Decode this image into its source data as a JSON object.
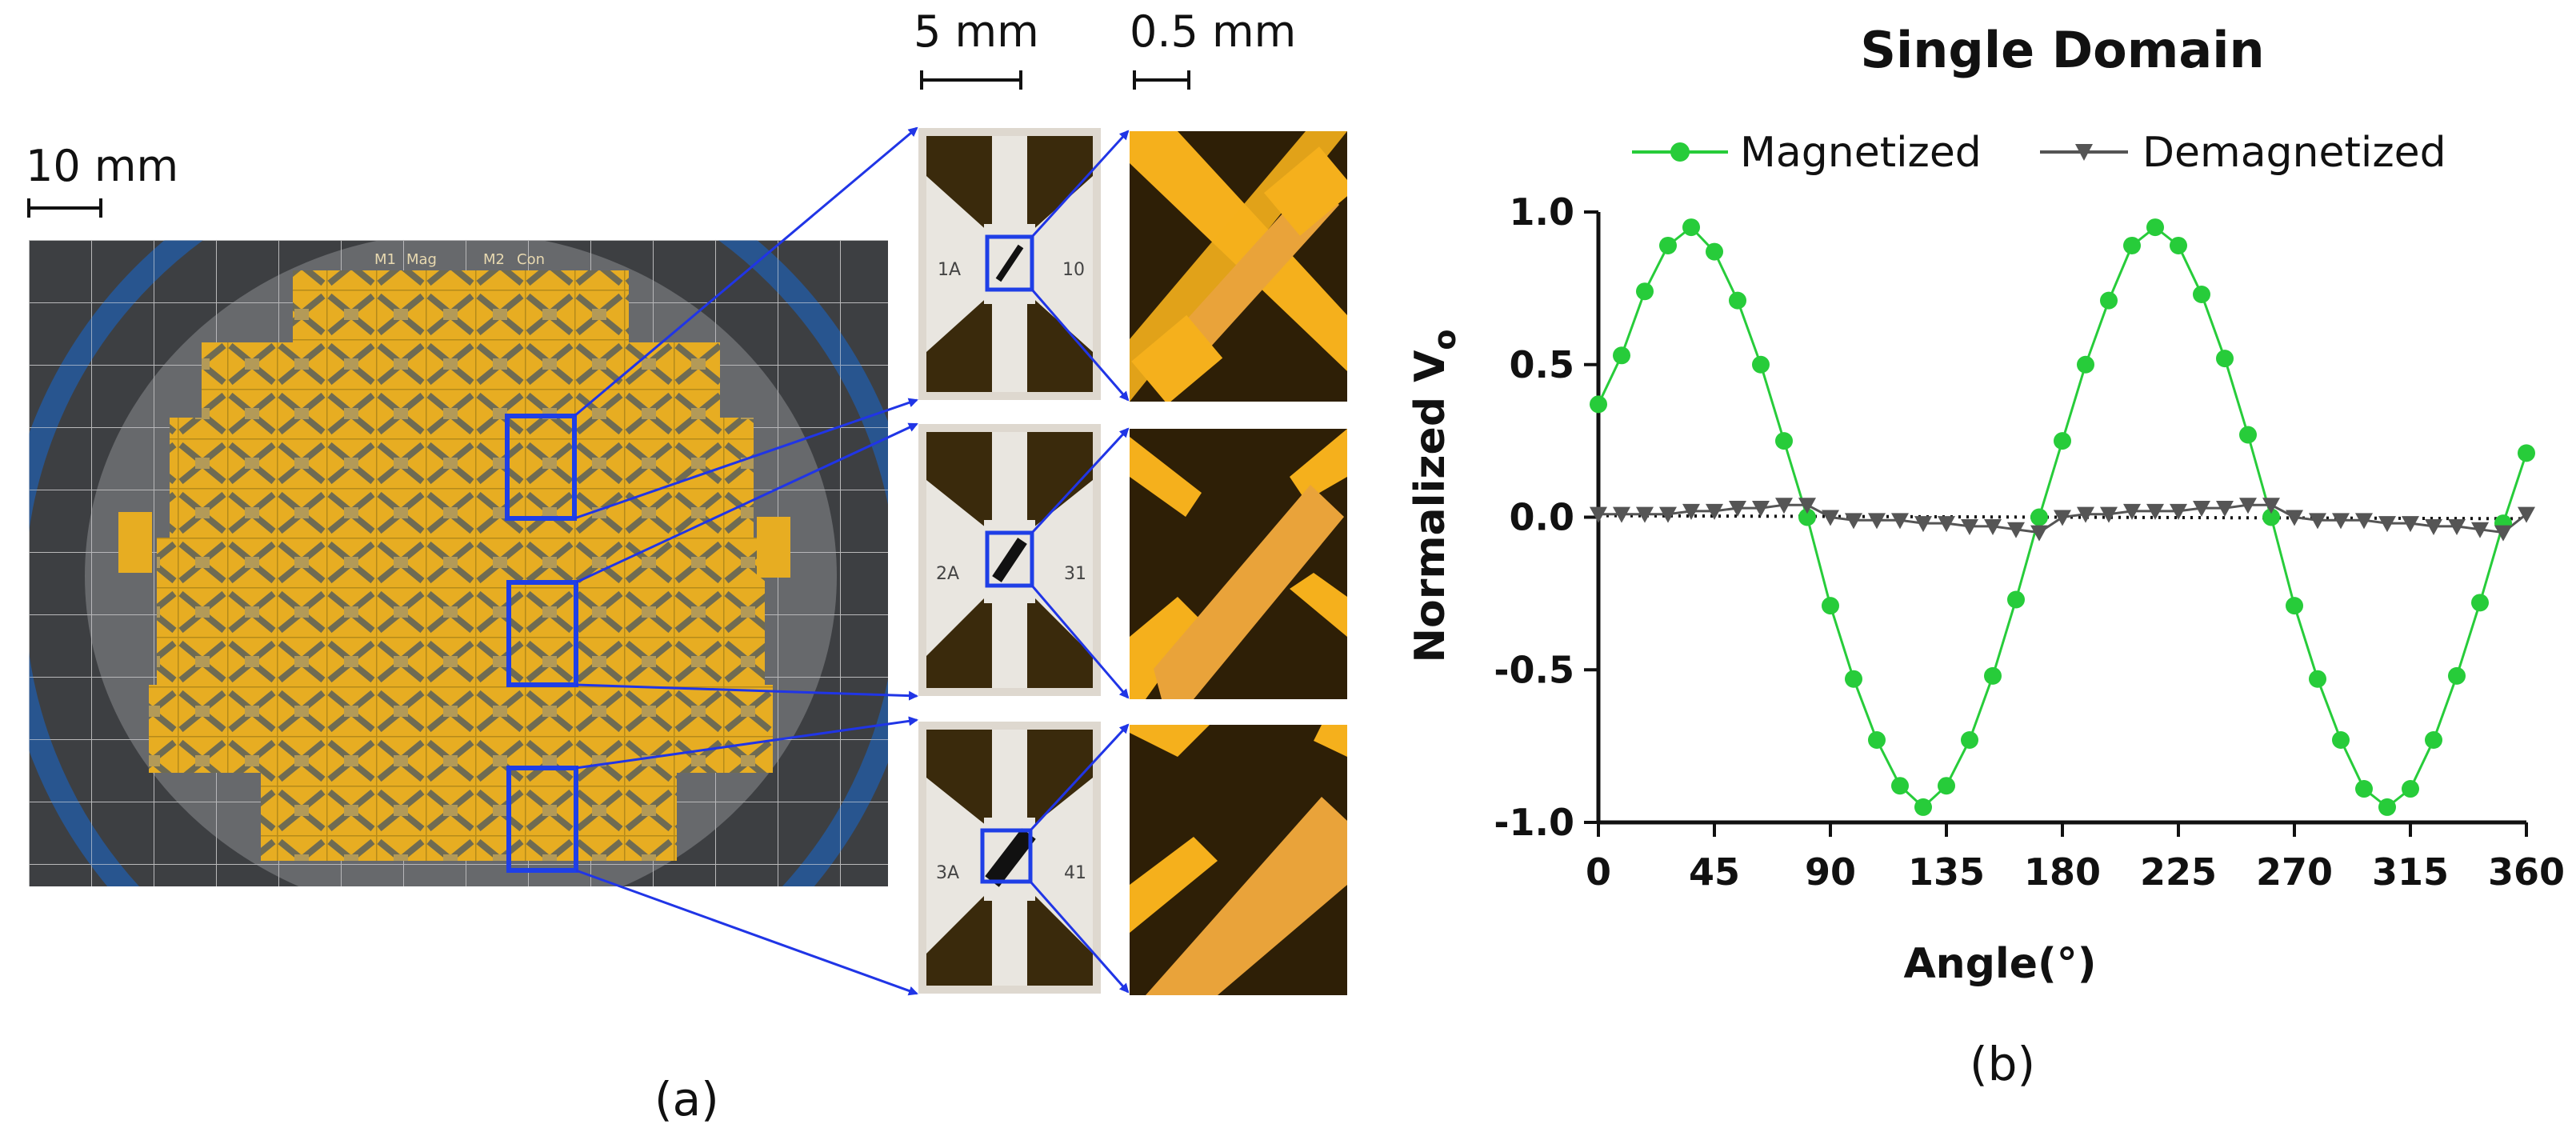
{
  "figure": {
    "panel_a_label": "(a)",
    "panel_b_label": "(b)",
    "scale_wafer": "10 mm",
    "scale_chip": "5 mm",
    "scale_zoom": "0.5 mm",
    "wafer_marks": [
      "M1",
      "Mag",
      "M2",
      "Con"
    ],
    "chips": [
      {
        "left_label": "1A",
        "right_label": "10"
      },
      {
        "left_label": "2A",
        "right_label": "31"
      },
      {
        "left_label": "3A",
        "right_label": "41"
      }
    ]
  },
  "colors": {
    "gold": "#f2b01a",
    "film": "#3a2a0c",
    "arrow": "#2035e6",
    "magnetized": "#27cc3a",
    "demagnetized": "#555555"
  },
  "chart_data": {
    "type": "line",
    "title": "Single Domain",
    "xlabel": "Angle(°)",
    "ylabel": "Normalized V",
    "ylabel_subscript": "o",
    "xlim": [
      0,
      360
    ],
    "ylim": [
      -1.0,
      1.0
    ],
    "xticks": [
      0,
      45,
      90,
      135,
      180,
      225,
      270,
      315,
      360
    ],
    "yticks": [
      1.0,
      0.5,
      0.0,
      -0.5,
      -1.0
    ],
    "ytick_labels": [
      "1.0",
      "0.5",
      "0.0",
      "-0.5",
      "-1.0"
    ],
    "legend": "top",
    "series": [
      {
        "name": "Magnetized",
        "marker": "circle",
        "x": [
          0,
          9,
          18,
          27,
          36,
          45,
          54,
          63,
          72,
          81,
          90,
          99,
          108,
          117,
          126,
          135,
          144,
          153,
          162,
          171,
          180,
          189,
          198,
          207,
          216,
          225,
          234,
          243,
          252,
          261,
          270,
          279,
          288,
          297,
          306,
          315,
          324,
          333,
          342,
          351,
          360
        ],
        "values": [
          0.37,
          0.53,
          0.74,
          0.89,
          0.95,
          0.87,
          0.71,
          0.5,
          0.25,
          0.0,
          -0.29,
          -0.53,
          -0.73,
          -0.88,
          -0.95,
          -0.88,
          -0.73,
          -0.52,
          -0.27,
          0.0,
          0.25,
          0.5,
          0.71,
          0.89,
          0.95,
          0.89,
          0.73,
          0.52,
          0.27,
          0.0,
          -0.29,
          -0.53,
          -0.73,
          -0.89,
          -0.95,
          -0.89,
          -0.73,
          -0.52,
          -0.28,
          -0.02,
          0.21
        ]
      },
      {
        "name": "Demagnetized",
        "marker": "triangle-down",
        "x": [
          0,
          9,
          18,
          27,
          36,
          45,
          54,
          63,
          72,
          81,
          90,
          99,
          108,
          117,
          126,
          135,
          144,
          153,
          162,
          171,
          180,
          189,
          198,
          207,
          216,
          225,
          234,
          243,
          252,
          261,
          270,
          279,
          288,
          297,
          306,
          315,
          324,
          333,
          342,
          351,
          360
        ],
        "values": [
          0.01,
          0.01,
          0.01,
          0.01,
          0.02,
          0.02,
          0.03,
          0.03,
          0.04,
          0.04,
          0.0,
          -0.01,
          -0.01,
          -0.01,
          -0.02,
          -0.02,
          -0.03,
          -0.03,
          -0.04,
          -0.05,
          0.0,
          0.01,
          0.01,
          0.02,
          0.02,
          0.02,
          0.03,
          0.03,
          0.04,
          0.04,
          0.0,
          -0.01,
          -0.01,
          -0.01,
          -0.02,
          -0.02,
          -0.03,
          -0.03,
          -0.04,
          -0.05,
          0.01
        ]
      }
    ],
    "fit_line": {
      "style": "dotted",
      "from": [
        0,
        0.005
      ],
      "to": [
        360,
        -0.005
      ]
    }
  }
}
